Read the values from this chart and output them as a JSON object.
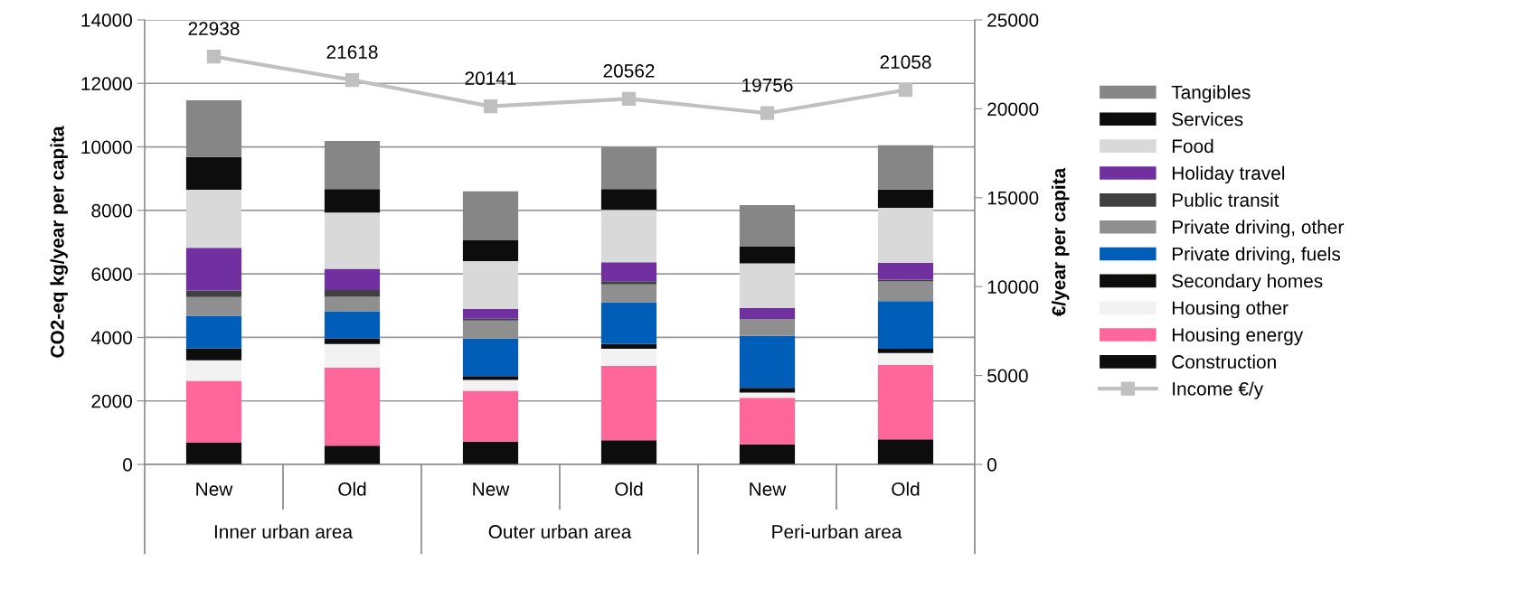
{
  "chart_data": {
    "type": "bar",
    "stacked": true,
    "ylabel": "CO2-eq kg/year per capita",
    "y2label": "€/year per capita",
    "categories": [
      "New",
      "Old",
      "New",
      "Old",
      "New",
      "Old"
    ],
    "annotations": [
      "Inner urban area",
      "Outer urban area",
      "Peri-urban area"
    ],
    "series": [
      {
        "name": "Construction",
        "color": "#0d0d0d",
        "values": [
          680,
          590,
          720,
          760,
          630,
          790
        ]
      },
      {
        "name": "Housing energy",
        "color": "#ff6699",
        "values": [
          1950,
          2460,
          1600,
          2340,
          1470,
          2340
        ]
      },
      {
        "name": "Housing other",
        "color": "#f2f2f2",
        "values": [
          650,
          740,
          340,
          540,
          160,
          380
        ]
      },
      {
        "name": "Secondary homes",
        "color": "#0d0d0d",
        "values": [
          380,
          180,
          120,
          150,
          150,
          130
        ]
      },
      {
        "name": "Private driving, fuels",
        "color": "#005eb8",
        "values": [
          1020,
          850,
          1180,
          1320,
          1640,
          1500
        ]
      },
      {
        "name": "Private driving, other",
        "color": "#8f8f8f",
        "values": [
          590,
          460,
          570,
          560,
          530,
          620
        ]
      },
      {
        "name": "Public transit",
        "color": "#404040",
        "values": [
          210,
          210,
          60,
          100,
          null,
          60
        ]
      },
      {
        "name": "Holiday travel",
        "color": "#7030a0",
        "values": [
          1340,
          670,
          310,
          600,
          350,
          530
        ]
      },
      {
        "name": "Food",
        "color": "#d9d9d9",
        "values": [
          1830,
          1770,
          1500,
          1650,
          1400,
          1730
        ]
      },
      {
        "name": "Services",
        "color": "#0d0d0d",
        "values": [
          1030,
          740,
          660,
          650,
          530,
          580
        ]
      },
      {
        "name": "Tangibles",
        "color": "#868686",
        "values": [
          1790,
          1520,
          1540,
          1320,
          1310,
          1390
        ]
      },
      {
        "name": "Income €/y",
        "type": "line",
        "axis": "y2",
        "color": "#c0c0c0",
        "marker": "square",
        "values": [
          22938,
          21618,
          20141,
          20562,
          19756,
          21058
        ],
        "value_labels": [
          "22938",
          "21618",
          "20141",
          "20562",
          "19756",
          "21058"
        ]
      }
    ],
    "ylim": [
      0,
      14000
    ],
    "yticks": [
      0,
      2000,
      4000,
      6000,
      8000,
      10000,
      12000,
      14000
    ],
    "y2lim": [
      0,
      25000
    ],
    "y2ticks": [
      0,
      5000,
      10000,
      15000,
      20000,
      25000
    ],
    "grid": "y",
    "legend": "right"
  }
}
